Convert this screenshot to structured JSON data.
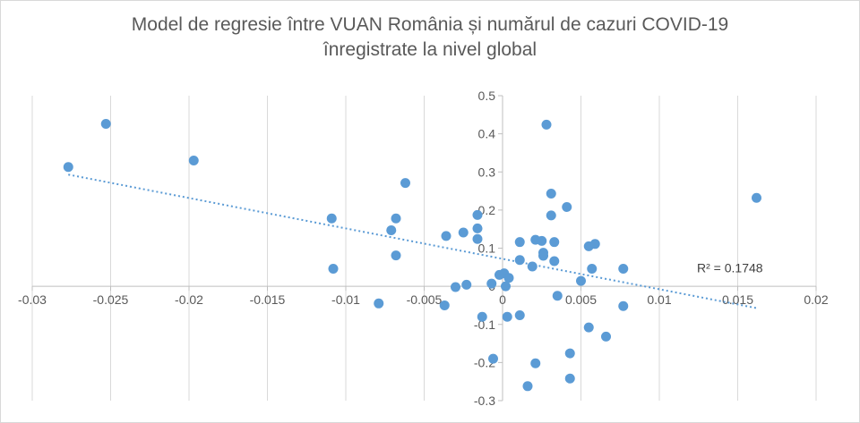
{
  "chart_data": {
    "type": "scatter",
    "title_line1": "Model de regresie între VUAN România și numărul de cazuri COVID-19",
    "title_line2": "înregistrate la nivel global",
    "xlabel": "",
    "ylabel": "",
    "xlim": [
      -0.03,
      0.02
    ],
    "ylim": [
      -0.3,
      0.5
    ],
    "x_ticks": [
      -0.03,
      -0.025,
      -0.02,
      -0.015,
      -0.01,
      -0.005,
      0,
      0.005,
      0.01,
      0.015,
      0.02
    ],
    "x_tick_labels": [
      "-0.03",
      "-0.025",
      "-0.02",
      "-0.015",
      "-0.01",
      "-0.005",
      "0",
      "0.005",
      "0.01",
      "0.015",
      "0.02"
    ],
    "y_ticks": [
      -0.3,
      -0.2,
      -0.1,
      0,
      0.1,
      0.2,
      0.3,
      0.4,
      0.5
    ],
    "y_tick_labels": [
      "-0.3",
      "-0.2",
      "-0.1",
      "0",
      "0.1",
      "0.2",
      "0.3",
      "0.4",
      "0.5"
    ],
    "grid": "vertical",
    "marker_color": "#5b9bd5",
    "trendline": {
      "type": "linear",
      "style": "dotted",
      "x_range": [
        -0.0277,
        0.0163
      ],
      "y_start": 0.293,
      "y_end": -0.058,
      "r2_label": "R² = 0.1748"
    },
    "points": [
      [
        -0.0277,
        0.313
      ],
      [
        -0.0253,
        0.426
      ],
      [
        -0.0197,
        0.33
      ],
      [
        -0.0109,
        0.178
      ],
      [
        -0.0108,
        0.046
      ],
      [
        -0.0079,
        -0.045
      ],
      [
        -0.0071,
        0.147
      ],
      [
        -0.0068,
        0.178
      ],
      [
        -0.0068,
        0.081
      ],
      [
        -0.0062,
        0.271
      ],
      [
        -0.0036,
        0.132
      ],
      [
        -0.0037,
        -0.05
      ],
      [
        -0.003,
        -0.002
      ],
      [
        -0.0025,
        0.141
      ],
      [
        -0.0023,
        0.004
      ],
      [
        -0.0016,
        0.187
      ],
      [
        -0.0016,
        0.152
      ],
      [
        -0.0016,
        0.124
      ],
      [
        -0.0013,
        -0.08
      ],
      [
        -0.0007,
        0.007
      ],
      [
        -0.0006,
        -0.19
      ],
      [
        -0.0002,
        0.03
      ],
      [
        0.0001,
        0.034
      ],
      [
        0.0002,
        0.0
      ],
      [
        0.0003,
        -0.08
      ],
      [
        0.0004,
        0.022
      ],
      [
        0.0011,
        0.116
      ],
      [
        0.0011,
        0.069
      ],
      [
        0.0011,
        -0.076
      ],
      [
        0.0016,
        -0.262
      ],
      [
        0.0019,
        0.052
      ],
      [
        0.0021,
        0.122
      ],
      [
        0.0021,
        -0.202
      ],
      [
        0.0025,
        0.119
      ],
      [
        0.0026,
        0.088
      ],
      [
        0.0026,
        0.08
      ],
      [
        0.0028,
        0.424
      ],
      [
        0.0031,
        0.243
      ],
      [
        0.0031,
        0.186
      ],
      [
        0.0033,
        0.116
      ],
      [
        0.0033,
        0.066
      ],
      [
        0.0035,
        -0.025
      ],
      [
        0.0041,
        0.208
      ],
      [
        0.0043,
        -0.176
      ],
      [
        0.0043,
        -0.242
      ],
      [
        0.005,
        0.014
      ],
      [
        0.0055,
        0.105
      ],
      [
        0.0055,
        -0.108
      ],
      [
        0.0057,
        0.046
      ],
      [
        0.0059,
        0.111
      ],
      [
        0.0066,
        -0.132
      ],
      [
        0.0077,
        0.046
      ],
      [
        0.0077,
        -0.052
      ],
      [
        0.0162,
        0.232
      ]
    ]
  }
}
